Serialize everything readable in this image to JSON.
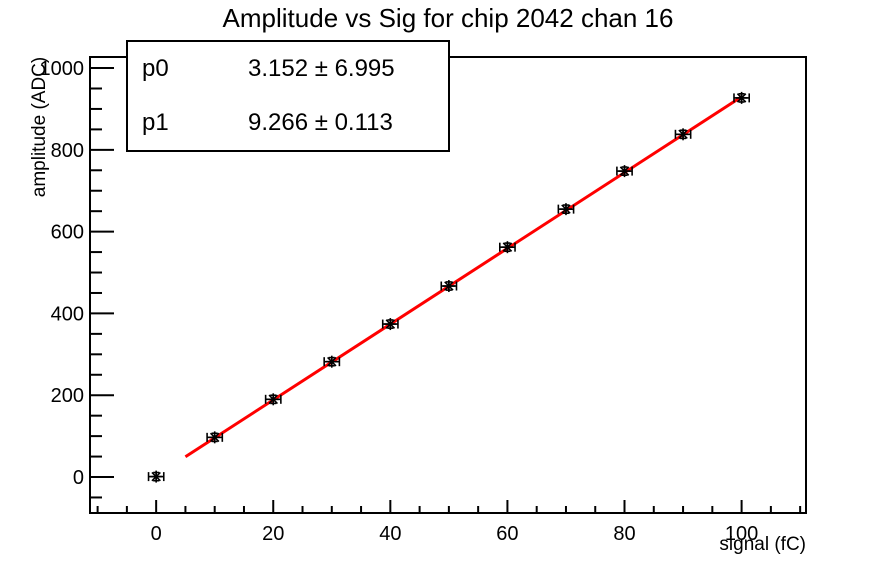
{
  "title": "Amplitude vs Sig for chip 2042 chan 16",
  "stats_box": {
    "rows": [
      {
        "name": "p0",
        "value": "3.152 ± 6.995"
      },
      {
        "name": "p1",
        "value": "9.266 ± 0.113"
      }
    ]
  },
  "chart_data": {
    "type": "scatter",
    "title": "Amplitude vs Sig for chip 2042 chan 16",
    "xlabel": "signal (fC)",
    "ylabel": "amplitude (ADC)",
    "x": [
      0,
      10,
      20,
      30,
      40,
      50,
      60,
      70,
      80,
      90,
      100
    ],
    "y": [
      1,
      97,
      190,
      282,
      374,
      467,
      562,
      655,
      748,
      838,
      927
    ],
    "xerr": 1.3,
    "yerr": 10,
    "marker": "asterisk",
    "fit": {
      "type": "linear",
      "p0": 3.152,
      "p0_err": 6.995,
      "p1": 9.266,
      "p1_err": 0.113,
      "range": [
        5,
        100
      ]
    },
    "xlim": [
      -11.3,
      111.0
    ],
    "ylim": [
      -88,
      1027
    ],
    "x_major_ticks": [
      0,
      20,
      40,
      60,
      80,
      100
    ],
    "x_minor": {
      "from": -10,
      "to": 110,
      "step": 5
    },
    "y_major_ticks": [
      0,
      200,
      400,
      600,
      800,
      1000
    ],
    "y_minor": {
      "from": -50,
      "to": 1000,
      "step": 50
    },
    "grid": false,
    "legend": "none",
    "colors": {
      "fit_line": "#ff0000",
      "axis": "#000000",
      "marker": "#000000",
      "background": "#ffffff"
    }
  }
}
